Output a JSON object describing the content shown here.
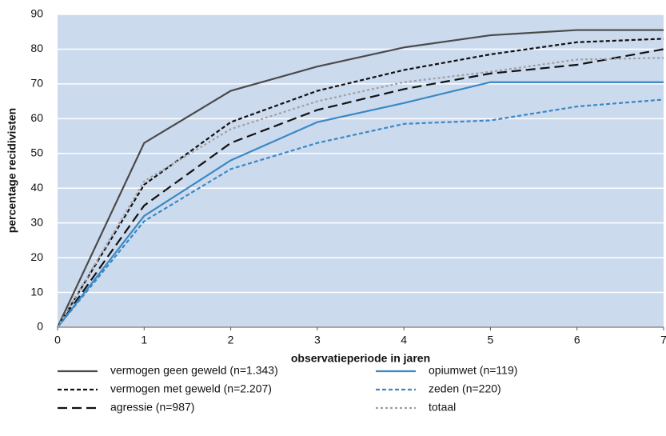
{
  "chart_data": {
    "type": "line",
    "x_label": "observatieperiode in jaren",
    "y_label": "percentage recidivisten",
    "x": [
      0,
      1,
      2,
      3,
      4,
      5,
      6,
      7
    ],
    "xlim": [
      0,
      7
    ],
    "xticks": [
      0,
      1,
      2,
      3,
      4,
      5,
      6,
      7
    ],
    "ylim": [
      0,
      90
    ],
    "yticks": [
      0,
      10,
      20,
      30,
      40,
      50,
      60,
      70,
      80,
      90
    ],
    "grid": true,
    "background": "#ccdaee",
    "legend": "bottom",
    "series": [
      {
        "name": "vermogen geen geweld (n=1.343)",
        "color": "#4a4a4a",
        "dash": "solid",
        "values": [
          0,
          53,
          68,
          75,
          80.5,
          84,
          85.5,
          85.5
        ]
      },
      {
        "name": "vermogen met geweld (n=2.207)",
        "color": "#111111",
        "dash": "short",
        "values": [
          0,
          41,
          59,
          68,
          74,
          78.5,
          82,
          83
        ]
      },
      {
        "name": "agressie (n=987)",
        "color": "#111111",
        "dash": "long",
        "values": [
          0,
          35,
          53,
          62.5,
          68.5,
          73,
          75.5,
          80
        ]
      },
      {
        "name": "opiumwet (n=119)",
        "color": "#3a88c4",
        "dash": "solid",
        "values": [
          0,
          32,
          48,
          59,
          64.5,
          70.5,
          70.5,
          70.5
        ]
      },
      {
        "name": "zeden (n=220)",
        "color": "#3a88c4",
        "dash": "short",
        "values": [
          0,
          30.5,
          45.5,
          53,
          58.5,
          59.5,
          63.5,
          65.5
        ]
      },
      {
        "name": "totaal",
        "color": "#a0a0a4",
        "dash": "dotted",
        "values": [
          0,
          42,
          57,
          65,
          70.5,
          73.5,
          77,
          77.5
        ]
      }
    ]
  }
}
